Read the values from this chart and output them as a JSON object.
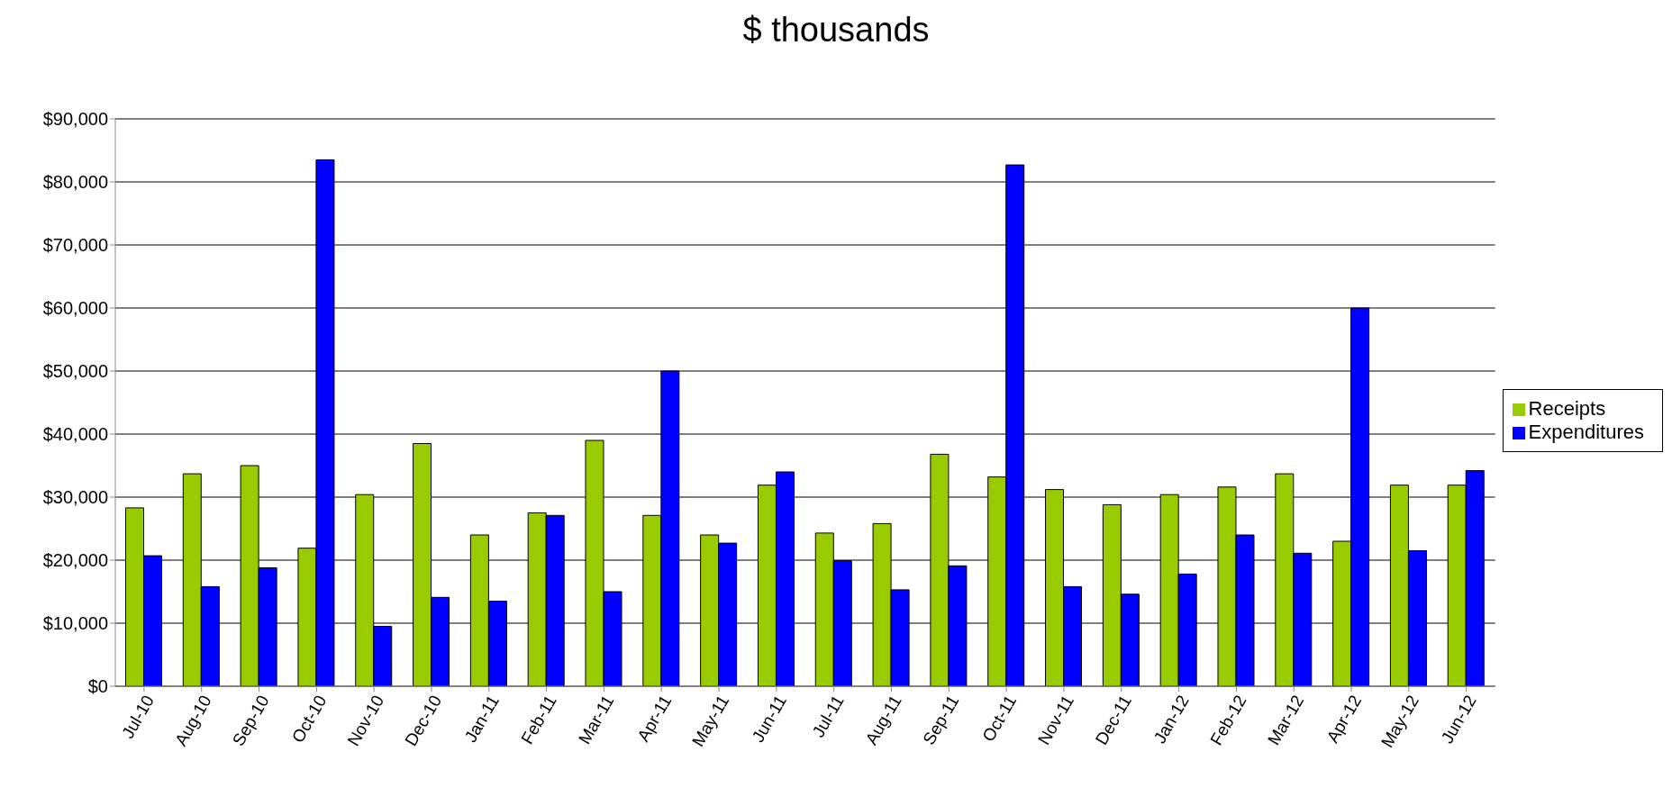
{
  "chart_data": {
    "type": "bar",
    "title": "$ thousands",
    "categories": [
      "Jul-10",
      "Aug-10",
      "Sep-10",
      "Oct-10",
      "Nov-10",
      "Dec-10",
      "Jan-11",
      "Feb-11",
      "Mar-11",
      "Apr-11",
      "May-11",
      "Jun-11",
      "Jul-11",
      "Aug-11",
      "Sep-11",
      "Oct-11",
      "Nov-11",
      "Dec-11",
      "Jan-12",
      "Feb-12",
      "Mar-12",
      "Apr-12",
      "May-12",
      "Jun-12"
    ],
    "series": [
      {
        "name": "Receipts",
        "color": "#99cc00",
        "values": [
          28300,
          33700,
          35000,
          21900,
          30400,
          38500,
          24000,
          27500,
          39000,
          27100,
          24000,
          31900,
          24300,
          25800,
          36800,
          33200,
          31200,
          28800,
          30400,
          31600,
          33700,
          23000,
          31900,
          31900
        ]
      },
      {
        "name": "Expenditures",
        "color": "#0000ff",
        "values": [
          20700,
          15800,
          18800,
          83500,
          9500,
          14100,
          13500,
          27100,
          15000,
          50000,
          22700,
          34000,
          19900,
          15300,
          19100,
          82700,
          15800,
          14600,
          17800,
          24000,
          21100,
          60000,
          21500,
          34200
        ]
      }
    ],
    "ylim": [
      0,
      90000
    ],
    "yticks": [
      {
        "value": 0,
        "label": "$0"
      },
      {
        "value": 10000,
        "label": "$10,000"
      },
      {
        "value": 20000,
        "label": "$20,000"
      },
      {
        "value": 30000,
        "label": "$30,000"
      },
      {
        "value": 40000,
        "label": "$40,000"
      },
      {
        "value": 50000,
        "label": "$50,000"
      },
      {
        "value": 60000,
        "label": "$60,000"
      },
      {
        "value": 70000,
        "label": "$70,000"
      },
      {
        "value": 80000,
        "label": "$80,000"
      },
      {
        "value": 90000,
        "label": "$90,000"
      }
    ],
    "grid": "y",
    "legend": "right"
  }
}
